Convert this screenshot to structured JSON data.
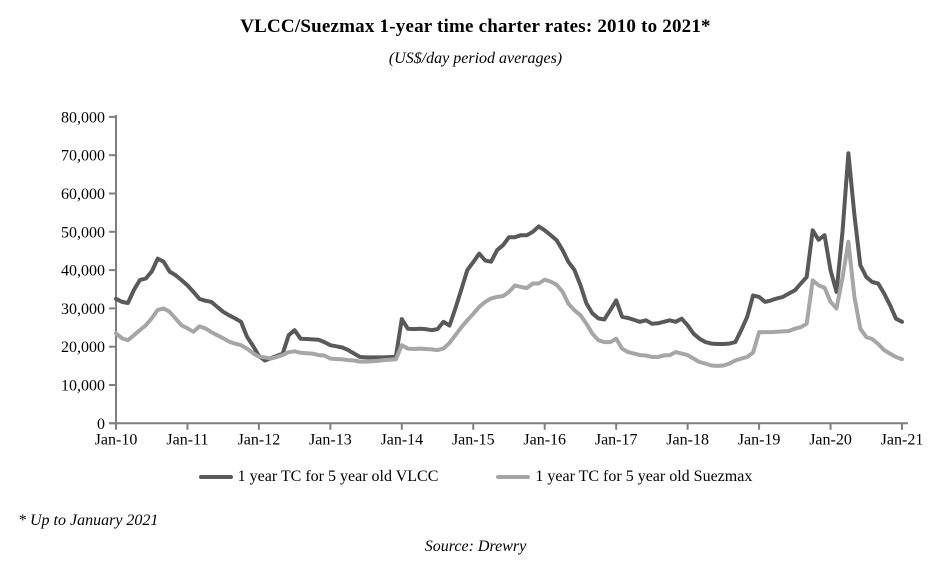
{
  "title": "VLCC/Suezmax 1-year time charter rates: 2010 to 2021*",
  "subtitle": "(US$/day period averages)",
  "footnote": "* Up to January 2021",
  "source": "Source: Drewry",
  "colors": {
    "axis": "#7F7F7F",
    "vlcc_line": "#595959",
    "suezmax_line": "#A6A6A6",
    "text": "#000000",
    "background": "#FFFFFF"
  },
  "legend": {
    "items": [
      {
        "label": "1 year TC for 5 year old VLCC"
      },
      {
        "label": "1 year TC for 5 year old Suezmax"
      }
    ]
  },
  "chart_data": {
    "type": "line",
    "title": "VLCC/Suezmax 1-year time charter rates: 2010 to 2021*",
    "subtitle": "(US$/day period averages)",
    "x_unit": "month",
    "x_start": "Jan-2010",
    "x_end": "Jan-2021",
    "x_tick_labels": [
      "Jan-10",
      "Jan-11",
      "Jan-12",
      "Jan-13",
      "Jan-14",
      "Jan-15",
      "Jan-16",
      "Jan-17",
      "Jan-18",
      "Jan-19",
      "Jan-20",
      "Jan-21"
    ],
    "ylim": [
      0,
      80000
    ],
    "y_tick_step": 10000,
    "grid": false,
    "legend_position": "bottom",
    "series": [
      {
        "name": "1 year TC for 5 year old VLCC",
        "color": "#595959",
        "values": [
          32500,
          31700,
          31400,
          34800,
          37400,
          37800,
          39600,
          43000,
          42200,
          39600,
          38700,
          37400,
          36000,
          34300,
          32500,
          32000,
          31700,
          30400,
          29100,
          28200,
          27400,
          26500,
          22600,
          20200,
          17600,
          16400,
          17000,
          17600,
          18200,
          23000,
          24300,
          22100,
          22000,
          21900,
          21800,
          21200,
          20400,
          20100,
          19800,
          19100,
          18200,
          17300,
          17200,
          17200,
          17200,
          17200,
          17300,
          17500,
          27200,
          24700,
          24600,
          24700,
          24600,
          24300,
          24600,
          26500,
          25500,
          30000,
          35000,
          40000,
          42100,
          44300,
          42500,
          42200,
          45200,
          46500,
          48600,
          48600,
          49100,
          49100,
          50000,
          51400,
          50400,
          49100,
          47800,
          45200,
          42100,
          40000,
          36000,
          31300,
          28700,
          27400,
          27100,
          29500,
          32100,
          27800,
          27500,
          27000,
          26500,
          26900,
          26000,
          26100,
          26500,
          26900,
          26500,
          27300,
          25600,
          23400,
          22100,
          21200,
          20800,
          20700,
          20700,
          20800,
          21200,
          24300,
          27800,
          33400,
          33000,
          31700,
          32100,
          32600,
          33000,
          33900,
          34700,
          36500,
          38200,
          50400,
          47900,
          49100,
          40000,
          34300,
          50000,
          70500,
          54400,
          41300,
          38200,
          36900,
          36500,
          33900,
          30800,
          27300,
          26500
        ]
      },
      {
        "name": "1 year TC for 5 year old Suezmax",
        "color": "#A6A6A6",
        "values": [
          23500,
          22200,
          21700,
          23000,
          24300,
          25600,
          27400,
          29600,
          30000,
          29100,
          27400,
          25600,
          24800,
          23900,
          25300,
          24800,
          23800,
          23000,
          22200,
          21300,
          20800,
          20400,
          19500,
          18300,
          17400,
          17200,
          16900,
          17300,
          17800,
          18600,
          18800,
          18400,
          18300,
          18200,
          17800,
          17700,
          16900,
          16800,
          16700,
          16500,
          16400,
          16100,
          16100,
          16200,
          16300,
          16500,
          16600,
          16700,
          20400,
          19500,
          19400,
          19500,
          19400,
          19300,
          19100,
          19500,
          21000,
          23000,
          25100,
          26900,
          28600,
          30400,
          31700,
          32600,
          33000,
          33200,
          34300,
          36000,
          35600,
          35300,
          36500,
          36500,
          37500,
          37000,
          36200,
          34300,
          31200,
          29500,
          28200,
          26000,
          23400,
          21700,
          21200,
          21200,
          22100,
          19500,
          18600,
          18200,
          17800,
          17700,
          17300,
          17300,
          17700,
          17800,
          18600,
          18200,
          17800,
          16900,
          16000,
          15600,
          15100,
          15000,
          15100,
          15600,
          16400,
          16900,
          17300,
          18500,
          23800,
          23800,
          23800,
          23900,
          24000,
          24100,
          24700,
          25100,
          26000,
          37300,
          36000,
          35400,
          31700,
          30000,
          38000,
          47400,
          33000,
          24700,
          22500,
          22000,
          20700,
          19100,
          18200,
          17300,
          16700
        ]
      }
    ]
  }
}
